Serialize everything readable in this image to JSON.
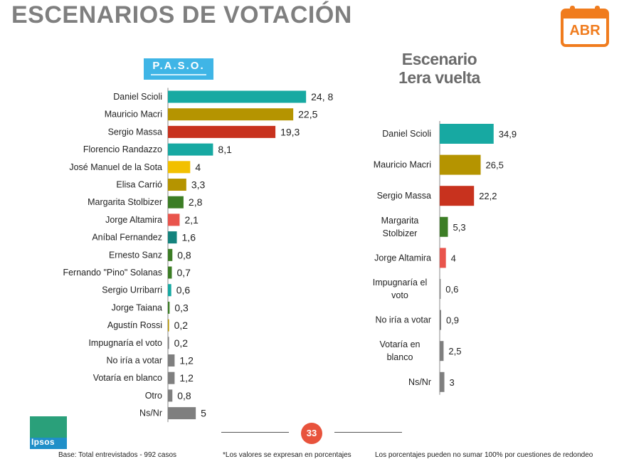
{
  "header": {
    "title": "ESCENARIOS DE VOTACIÓN",
    "badge": "ABR"
  },
  "left_logo": {
    "text": "P.A.S.O."
  },
  "right_title": {
    "line1": "Escenario",
    "line2": "1era vuelta"
  },
  "chart_data": [
    {
      "type": "bar",
      "orientation": "horizontal",
      "title": "P.A.S.O.",
      "categories": [
        "Daniel Scioli",
        "Mauricio Macri",
        "Sergio Massa",
        "Florencio Randazzo",
        "José Manuel de la Sota",
        "Elisa Carrió",
        "Margarita Stolbizer",
        "Jorge Altamira",
        "Aníbal Fernandez",
        "Ernesto Sanz",
        "Fernando \"Pino\" Solanas",
        "Sergio Urribarri",
        "Jorge Taiana",
        "Agustín Rossi",
        "Impugnaría el voto",
        "No iría a votar",
        "Votaría en blanco",
        "Otro",
        "Ns/Nr"
      ],
      "values": [
        24.8,
        22.5,
        19.3,
        8.1,
        4,
        3.3,
        2.8,
        2.1,
        1.6,
        0.8,
        0.7,
        0.6,
        0.3,
        0.2,
        0.2,
        1.2,
        1.2,
        0.8,
        5
      ],
      "labels": [
        "24, 8",
        "22,5",
        "19,3",
        "8,1",
        "4",
        "3,3",
        "2,8",
        "2,1",
        "1,6",
        "0,8",
        "0,7",
        "0,6",
        "0,3",
        "0,2",
        "0,2",
        "1,2",
        "1,2",
        "0,8",
        "5"
      ],
      "colors": [
        "#17a9a2",
        "#b59400",
        "#c8321e",
        "#17a9a2",
        "#f2c000",
        "#b59400",
        "#3c7d25",
        "#e9544c",
        "#14837d",
        "#3c7d25",
        "#3c7d25",
        "#17a9a2",
        "#3c7d25",
        "#b59400",
        "#7f7f7f",
        "#7f7f7f",
        "#7f7f7f",
        "#7f7f7f",
        "#7f7f7f"
      ],
      "xlim": [
        0,
        35
      ]
    },
    {
      "type": "bar",
      "orientation": "horizontal",
      "title": "Escenario 1era vuelta",
      "categories": [
        "Daniel Scioli",
        "Mauricio Macri",
        "Sergio Massa",
        "Margarita Stolbizer",
        "Jorge Altamira",
        "Impugnaría el voto",
        "No iría a votar",
        "Votaría en blanco",
        "Ns/Nr"
      ],
      "category_lines": [
        [
          "Daniel Scioli"
        ],
        [
          "Mauricio Macri"
        ],
        [
          "Sergio Massa"
        ],
        [
          "Margarita",
          "Stolbizer"
        ],
        [
          "Jorge Altamira"
        ],
        [
          "Impugnaría el",
          "voto"
        ],
        [
          "No iría a votar"
        ],
        [
          "Votaría en",
          "blanco"
        ],
        [
          "Ns/Nr"
        ]
      ],
      "values": [
        34.9,
        26.5,
        22.2,
        5.3,
        4,
        0.6,
        0.9,
        2.5,
        3
      ],
      "labels": [
        "34,9",
        "26,5",
        "22,2",
        "5,3",
        "4",
        "0,6",
        "0,9",
        "2,5",
        "3"
      ],
      "colors": [
        "#17a9a2",
        "#b59400",
        "#c8321e",
        "#3c7d25",
        "#e9544c",
        "#7f7f7f",
        "#7f7f7f",
        "#7f7f7f",
        "#7f7f7f"
      ],
      "xlim": [
        0,
        35
      ]
    }
  ],
  "footer": {
    "page": "33",
    "base": "Base: Total entrevistados - 992 casos",
    "note1": "*Los valores se expresan en porcentajes",
    "note2": "Los porcentajes pueden no sumar 100% por cuestiones de redondeo",
    "brand": "Ipsos"
  }
}
